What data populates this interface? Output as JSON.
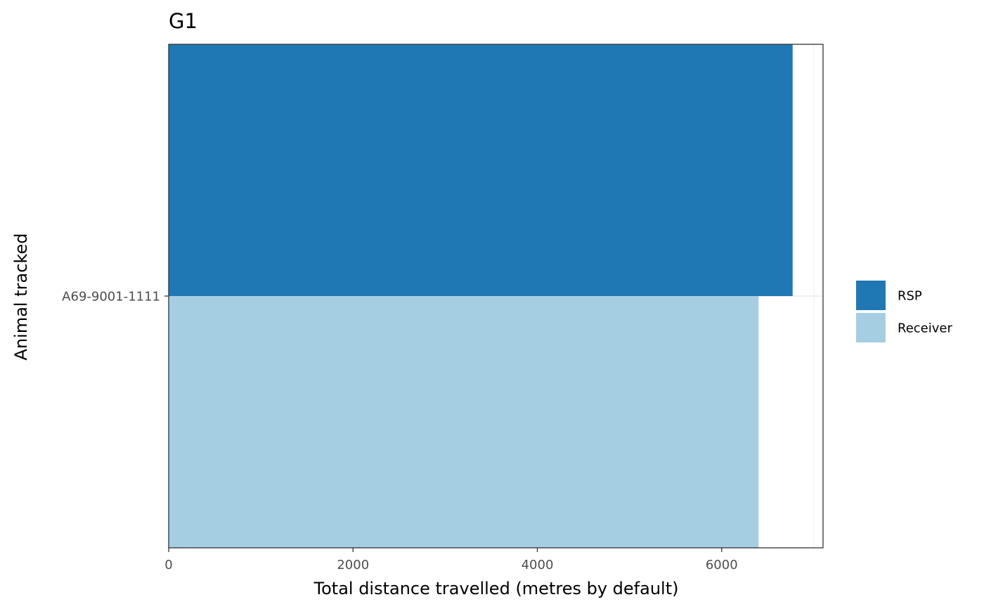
{
  "chart_data": {
    "type": "bar",
    "orientation": "horizontal",
    "title": "G1",
    "xlabel": "Total distance travelled (metres by default)",
    "ylabel": "Animal tracked",
    "categories": [
      "A69-9001-1111"
    ],
    "series": [
      {
        "name": "RSP",
        "values": [
          6770
        ],
        "color": "#1f78b4"
      },
      {
        "name": "Receiver",
        "values": [
          6400
        ],
        "color": "#a6cee3"
      }
    ],
    "xlim": [
      0,
      7100
    ],
    "xticks": [
      0,
      2000,
      4000,
      6000
    ],
    "grid": true,
    "legend": "right"
  }
}
